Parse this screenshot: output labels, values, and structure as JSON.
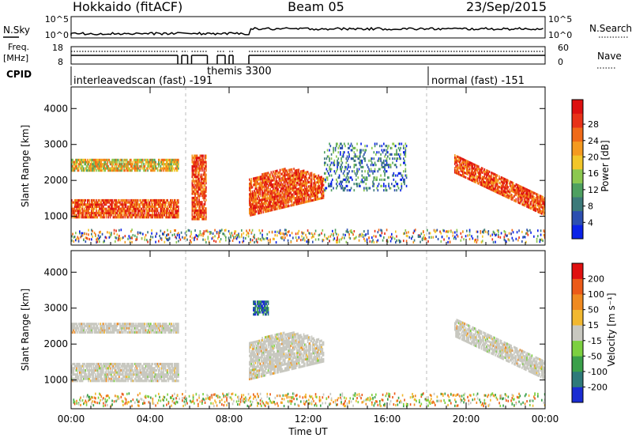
{
  "header": {
    "station": "Hokkaido (fitACF)",
    "beam": "Beam 05",
    "date": "23/Sep/2015"
  },
  "status": {
    "nsky_label": "N.Sky",
    "nsky_ticks": [
      "10^5",
      "10^0"
    ],
    "nsearch_label": "N.Search",
    "nsearch_ticks": [
      "10^5",
      "10^0"
    ],
    "freq_label": "Freq.",
    "freq_unit": "[MHz]",
    "freq_ticks": [
      "18",
      "8"
    ],
    "nave_label": "Nave",
    "nave_ticks": [
      "60",
      "0"
    ],
    "cpid_label": "CPID",
    "cpid_entries": [
      {
        "text": "interleavedscan (fast)  -191"
      },
      {
        "text": "themis 3300"
      },
      {
        "text": "normal (fast)  -151"
      }
    ]
  },
  "chart_data": [
    {
      "type": "heatmap",
      "name": "power",
      "ylabel": "Slant Range [km]",
      "yticks": [
        1000,
        2000,
        3000,
        4000
      ],
      "ylim": [
        200,
        4600
      ],
      "colorbar": {
        "label": "Power [dB]",
        "ticks": [
          4,
          8,
          12,
          16,
          20,
          24,
          28
        ],
        "colors": [
          "#0a22e8",
          "#2c4fb0",
          "#3c7a7a",
          "#4ea060",
          "#8cc850",
          "#f2c62a",
          "#f59a20",
          "#f06a18",
          "#e83218",
          "#dd1010"
        ]
      },
      "echo_regions": [
        {
          "t": [
            0.0,
            5.4
          ],
          "r": [
            950,
            1450
          ],
          "level": "high"
        },
        {
          "t": [
            0.0,
            5.4
          ],
          "r": [
            2250,
            2550
          ],
          "level": "medium"
        },
        {
          "t": [
            6.1,
            6.8
          ],
          "r": [
            900,
            2700
          ],
          "level": "high"
        },
        {
          "t": [
            9.0,
            12.8
          ],
          "r": [
            1300,
            2200
          ],
          "level": "high"
        },
        {
          "t": [
            12.8,
            17.0
          ],
          "r": [
            1700,
            3000
          ],
          "level": "low"
        },
        {
          "t": [
            19.4,
            24.0
          ],
          "r": [
            900,
            2500
          ],
          "level": "high"
        }
      ]
    },
    {
      "type": "heatmap",
      "name": "velocity",
      "ylabel": "Slant Range [km]",
      "xlabel": "Time UT",
      "xticks": [
        "00:00",
        "04:00",
        "08:00",
        "12:00",
        "16:00",
        "20:00",
        "00:00"
      ],
      "yticks": [
        1000,
        2000,
        3000,
        4000
      ],
      "ylim": [
        200,
        4600
      ],
      "colorbar": {
        "label": "Velocity [m s⁻¹]",
        "ticks": [
          200,
          100,
          50,
          15,
          -15,
          -50,
          -100,
          -200
        ],
        "colors": [
          "#1a2cd2",
          "#2e7a7a",
          "#3aa04a",
          "#7cd040",
          "#c8c8c0",
          "#f2b830",
          "#f08a20",
          "#ec5a18",
          "#e01010"
        ]
      },
      "echo_regions": [
        {
          "t": [
            0.0,
            5.4
          ],
          "r": [
            950,
            1450
          ],
          "level": "ground"
        },
        {
          "t": [
            0.0,
            5.4
          ],
          "r": [
            2300,
            2550
          ],
          "level": "ground"
        },
        {
          "t": [
            9.0,
            12.8
          ],
          "r": [
            1300,
            2400
          ],
          "level": "ground"
        },
        {
          "t": [
            9.2,
            10.0
          ],
          "r": [
            2800,
            3200
          ],
          "level": "positive"
        },
        {
          "t": [
            19.4,
            24.0
          ],
          "r": [
            900,
            2500
          ],
          "level": "ground"
        }
      ]
    }
  ]
}
